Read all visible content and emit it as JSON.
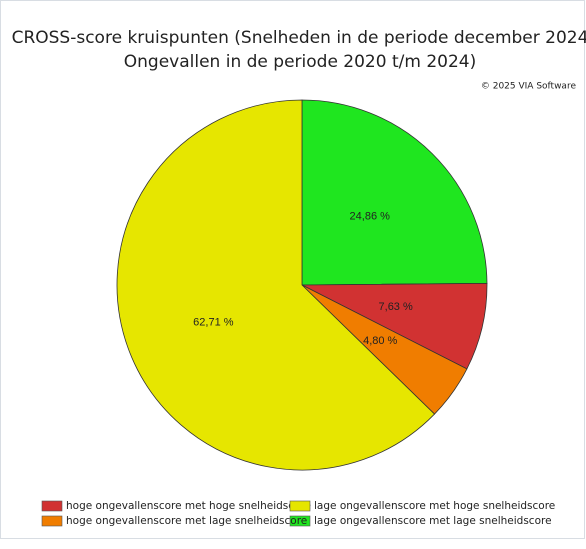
{
  "chart_data": {
    "type": "pie",
    "title": [
      "CROSS-score kruispunten (Snelheden in de periode december 2024",
      "Ongevallen in de periode 2020 t/m 2024)"
    ],
    "credit": "© 2025 VIA Software",
    "categories": [
      "lage ongevallenscore met lage snelheidscore",
      "hoge ongevallenscore met hoge snelheidscore",
      "hoge ongevallenscore met lage snelheidscore",
      "lage ongevallenscore met hoge snelheidscore"
    ],
    "values": [
      24.86,
      7.63,
      4.8,
      62.71
    ],
    "value_labels": [
      "24,86 %",
      "7,63 %",
      "4,80 %",
      "62,71 %"
    ],
    "colors": [
      "#1fe61f",
      "#d13232",
      "#f07d00",
      "#e6e600"
    ],
    "start_angle": 0,
    "direction": "clockwise",
    "legend": "bottom"
  }
}
